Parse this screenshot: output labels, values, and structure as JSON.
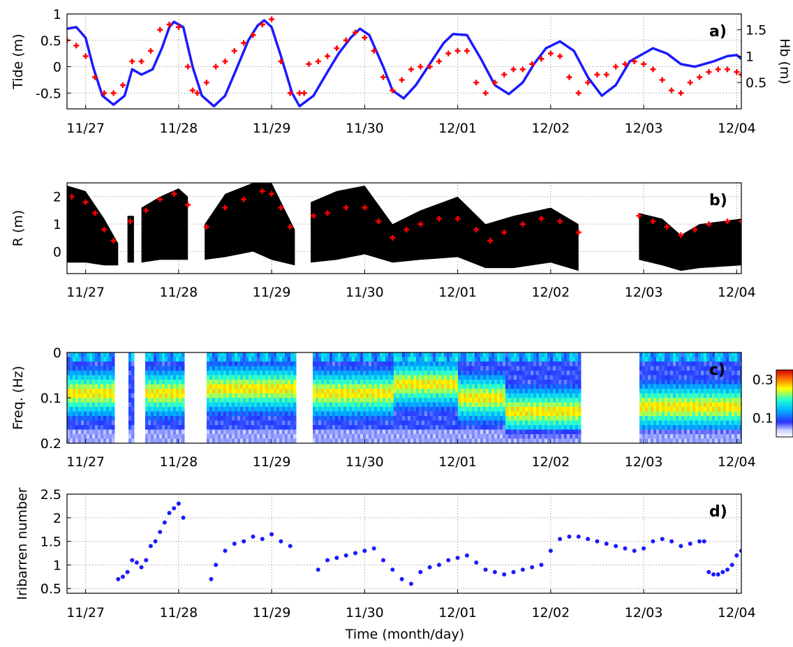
{
  "figure": {
    "xlabel": "Time (month/day)",
    "date_ticks": [
      "11/27",
      "11/28",
      "11/29",
      "11/30",
      "12/01",
      "12/02",
      "12/03",
      "12/04"
    ]
  },
  "chart_data": [
    {
      "type": "line",
      "panel_label": "a)",
      "ylabel": "Tide (m)",
      "ylabel_right": "Hb (m)",
      "xlim": [
        26.8,
        34.05
      ],
      "ylim": [
        -0.8,
        1.0
      ],
      "ylim_right": [
        0,
        1.8
      ],
      "yticks": [
        -0.5,
        0,
        0.5,
        1
      ],
      "yticks_right": [
        0.5,
        1,
        1.5
      ],
      "grid": true,
      "series": [
        {
          "axis": "left",
          "style": "line",
          "color": "#1a1aff",
          "x": [
            26.8,
            26.9,
            27.0,
            27.08,
            27.18,
            27.3,
            27.42,
            27.5,
            27.6,
            27.72,
            27.82,
            27.9,
            27.95,
            28.05,
            28.15,
            28.25,
            28.38,
            28.5,
            28.62,
            28.75,
            28.85,
            28.92,
            29.0,
            29.1,
            29.22,
            29.3,
            29.45,
            29.6,
            29.72,
            29.85,
            29.95,
            30.05,
            30.2,
            30.3,
            30.42,
            30.55,
            30.7,
            30.85,
            30.95,
            31.1,
            31.25,
            31.4,
            31.55,
            31.7,
            31.82,
            31.95,
            32.1,
            32.25,
            32.4,
            32.55,
            32.7,
            32.85,
            32.95,
            33.1,
            33.25,
            33.4,
            33.55,
            33.75,
            33.9,
            34.0,
            34.05
          ],
          "y": [
            0.72,
            0.75,
            0.55,
            0.0,
            -0.55,
            -0.72,
            -0.55,
            -0.05,
            -0.15,
            -0.05,
            0.35,
            0.75,
            0.85,
            0.75,
            0.0,
            -0.55,
            -0.75,
            -0.55,
            -0.05,
            0.5,
            0.78,
            0.88,
            0.75,
            0.2,
            -0.5,
            -0.75,
            -0.55,
            -0.1,
            0.25,
            0.55,
            0.72,
            0.6,
            0.0,
            -0.45,
            -0.6,
            -0.35,
            0.05,
            0.45,
            0.62,
            0.6,
            0.15,
            -0.35,
            -0.52,
            -0.3,
            0.05,
            0.35,
            0.48,
            0.3,
            -0.2,
            -0.55,
            -0.35,
            0.1,
            0.2,
            0.35,
            0.25,
            0.05,
            0.0,
            0.1,
            0.2,
            0.22,
            0.15
          ]
        },
        {
          "axis": "right",
          "style": "markers",
          "color": "#ff0000",
          "x": [
            26.8,
            26.9,
            27.0,
            27.1,
            27.2,
            27.3,
            27.4,
            27.5,
            27.6,
            27.7,
            27.8,
            27.9,
            28.0,
            28.1,
            28.15,
            28.2,
            28.3,
            28.4,
            28.5,
            28.6,
            28.7,
            28.8,
            28.9,
            29.0,
            29.1,
            29.2,
            29.3,
            29.35,
            29.4,
            29.5,
            29.6,
            29.7,
            29.8,
            29.9,
            30.0,
            30.1,
            30.2,
            30.3,
            30.4,
            30.5,
            30.6,
            30.7,
            30.8,
            30.9,
            31.0,
            31.1,
            31.2,
            31.3,
            31.4,
            31.5,
            31.6,
            31.7,
            31.8,
            31.9,
            32.0,
            32.1,
            32.2,
            32.3,
            32.4,
            32.5,
            32.6,
            32.7,
            32.8,
            32.9,
            33.0,
            33.1,
            33.2,
            33.3,
            33.4,
            33.5,
            33.6,
            33.7,
            33.8,
            33.9,
            34.0,
            34.05
          ],
          "y": [
            1.3,
            1.2,
            1.0,
            0.6,
            0.3,
            0.3,
            0.45,
            0.9,
            0.9,
            1.1,
            1.5,
            1.6,
            1.55,
            0.8,
            0.35,
            0.3,
            0.5,
            0.8,
            0.9,
            1.1,
            1.25,
            1.4,
            1.6,
            1.7,
            0.9,
            0.3,
            0.3,
            0.3,
            0.85,
            0.9,
            1.0,
            1.15,
            1.3,
            1.45,
            1.35,
            1.1,
            0.6,
            0.35,
            0.55,
            0.75,
            0.8,
            0.8,
            0.9,
            1.05,
            1.1,
            1.1,
            0.5,
            0.3,
            0.5,
            0.65,
            0.75,
            0.75,
            0.85,
            0.95,
            1.05,
            1.0,
            0.6,
            0.3,
            0.5,
            0.65,
            0.65,
            0.8,
            0.85,
            0.9,
            0.85,
            0.75,
            0.55,
            0.35,
            0.3,
            0.5,
            0.6,
            0.7,
            0.75,
            0.75,
            0.7,
            0.65
          ]
        }
      ]
    },
    {
      "type": "scatter",
      "panel_label": "b)",
      "ylabel": "R (m)",
      "xlim": [
        26.8,
        34.05
      ],
      "ylim": [
        -0.8,
        2.5
      ],
      "yticks": [
        0,
        1,
        2
      ],
      "grid": true,
      "series": [
        {
          "style": "band",
          "color": "#000000",
          "segments": [
            {
              "x": [
                26.8,
                27.0,
                27.2,
                27.35
              ],
              "lower": [
                -0.4,
                -0.4,
                -0.5,
                -0.5
              ],
              "upper": [
                2.4,
                2.2,
                1.2,
                0.3
              ]
            },
            {
              "x": [
                27.45,
                27.52
              ],
              "lower": [
                -0.4,
                -0.4
              ],
              "upper": [
                1.3,
                1.3
              ]
            },
            {
              "x": [
                27.6,
                27.8,
                28.0,
                28.1
              ],
              "lower": [
                -0.4,
                -0.3,
                -0.3,
                -0.3
              ],
              "upper": [
                1.6,
                2.0,
                2.3,
                2.0
              ]
            },
            {
              "x": [
                28.28,
                28.5,
                28.8,
                29.0,
                29.25
              ],
              "lower": [
                -0.3,
                -0.2,
                0.0,
                -0.3,
                -0.5
              ],
              "upper": [
                1.0,
                2.1,
                2.5,
                2.5,
                0.8
              ]
            },
            {
              "x": [
                29.42,
                29.7,
                30.0,
                30.3,
                30.6,
                31.0,
                31.3,
                31.6,
                32.0,
                32.3
              ],
              "lower": [
                -0.4,
                -0.3,
                -0.1,
                -0.4,
                -0.3,
                -0.2,
                -0.6,
                -0.6,
                -0.4,
                -0.7
              ],
              "upper": [
                1.8,
                2.2,
                2.4,
                1.0,
                1.5,
                2.0,
                1.0,
                1.3,
                1.6,
                1.0
              ]
            },
            {
              "x": [
                32.95,
                33.2,
                33.4,
                33.6,
                34.05
              ],
              "lower": [
                -0.3,
                -0.5,
                -0.7,
                -0.6,
                -0.5
              ],
              "upper": [
                1.4,
                1.2,
                0.6,
                1.0,
                1.2
              ]
            }
          ]
        },
        {
          "style": "markers",
          "color": "#ff0000",
          "x": [
            26.85,
            27.0,
            27.1,
            27.2,
            27.3,
            27.48,
            27.65,
            27.8,
            27.95,
            28.1,
            28.3,
            28.5,
            28.7,
            28.9,
            29.0,
            29.1,
            29.2,
            29.45,
            29.6,
            29.8,
            30.0,
            30.15,
            30.3,
            30.45,
            30.6,
            30.8,
            31.0,
            31.2,
            31.35,
            31.5,
            31.7,
            31.9,
            32.1,
            32.3,
            32.95,
            33.1,
            33.25,
            33.4,
            33.55,
            33.7,
            33.9,
            34.05
          ],
          "y": [
            2.0,
            1.8,
            1.4,
            0.8,
            0.4,
            1.1,
            1.5,
            1.9,
            2.1,
            1.7,
            0.9,
            1.6,
            1.9,
            2.2,
            2.1,
            1.6,
            0.9,
            1.3,
            1.4,
            1.6,
            1.6,
            1.1,
            0.5,
            0.8,
            1.0,
            1.2,
            1.2,
            0.8,
            0.4,
            0.7,
            1.0,
            1.2,
            1.1,
            0.7,
            1.3,
            1.1,
            0.9,
            0.6,
            0.8,
            1.0,
            1.1,
            1.1
          ]
        }
      ]
    },
    {
      "type": "heatmap",
      "panel_label": "c)",
      "ylabel": "Freq. (Hz)",
      "xlim": [
        26.8,
        34.05
      ],
      "ylim": [
        0.2,
        0
      ],
      "yticks": [
        0,
        0.1,
        0.2
      ],
      "grid": false,
      "colorbar": {
        "ticks": [
          0.1,
          0.3
        ],
        "range": [
          0,
          0.35
        ]
      },
      "gaps": [
        [
          27.3,
          27.45
        ],
        [
          27.52,
          27.62
        ],
        [
          28.05,
          28.28
        ],
        [
          29.25,
          29.42
        ],
        [
          32.3,
          32.95
        ]
      ],
      "peak_band": [
        {
          "x": [
            26.8,
            27.3
          ],
          "f": 0.09
        },
        {
          "x": [
            27.6,
            28.1
          ],
          "f": 0.09
        },
        {
          "x": [
            28.3,
            29.25
          ],
          "f": 0.08
        },
        {
          "x": [
            29.42,
            30.3
          ],
          "f": 0.09
        },
        {
          "x": [
            30.3,
            31.0
          ],
          "f": 0.07
        },
        {
          "x": [
            31.0,
            31.5
          ],
          "f": 0.1
        },
        {
          "x": [
            31.5,
            32.3
          ],
          "f": 0.13
        },
        {
          "x": [
            32.95,
            34.05
          ],
          "f": 0.12
        }
      ]
    },
    {
      "type": "scatter",
      "panel_label": "d)",
      "ylabel": "Iribarren number",
      "xlim": [
        26.8,
        34.05
      ],
      "ylim": [
        0.4,
        2.5
      ],
      "yticks": [
        0.5,
        1,
        1.5,
        2,
        2.5
      ],
      "grid": true,
      "series": [
        {
          "style": "markers",
          "color": "#1a1aff",
          "x": [
            27.35,
            27.4,
            27.45,
            27.5,
            27.55,
            27.6,
            27.65,
            27.7,
            27.75,
            27.8,
            27.85,
            27.9,
            27.95,
            28.0,
            28.05,
            28.35,
            28.4,
            28.5,
            28.6,
            28.7,
            28.8,
            28.9,
            29.0,
            29.1,
            29.2,
            29.5,
            29.6,
            29.7,
            29.8,
            29.9,
            30.0,
            30.1,
            30.2,
            30.3,
            30.4,
            30.5,
            30.6,
            30.7,
            30.8,
            30.9,
            31.0,
            31.1,
            31.2,
            31.3,
            31.4,
            31.5,
            31.6,
            31.7,
            31.8,
            31.9,
            32.0,
            32.1,
            32.2,
            32.3,
            32.4,
            32.5,
            32.6,
            32.7,
            32.8,
            32.9,
            33.0,
            33.1,
            33.2,
            33.3,
            33.4,
            33.5,
            33.6,
            33.65,
            33.7,
            33.75,
            33.8,
            33.85,
            33.9,
            33.95,
            34.0,
            34.05,
            34.1
          ],
          "y": [
            0.7,
            0.75,
            0.85,
            1.1,
            1.05,
            0.95,
            1.1,
            1.4,
            1.5,
            1.7,
            1.9,
            2.1,
            2.2,
            2.3,
            2.0,
            0.7,
            1.0,
            1.3,
            1.45,
            1.5,
            1.6,
            1.55,
            1.65,
            1.5,
            1.4,
            0.9,
            1.1,
            1.15,
            1.2,
            1.25,
            1.3,
            1.35,
            1.1,
            0.9,
            0.7,
            0.6,
            0.85,
            0.95,
            1.0,
            1.1,
            1.15,
            1.2,
            1.05,
            0.9,
            0.85,
            0.8,
            0.85,
            0.9,
            0.95,
            1.0,
            1.3,
            1.55,
            1.6,
            1.6,
            1.55,
            1.5,
            1.45,
            1.4,
            1.35,
            1.3,
            1.35,
            1.5,
            1.55,
            1.5,
            1.4,
            1.45,
            1.5,
            1.5,
            0.85,
            0.8,
            0.8,
            0.85,
            0.9,
            1.0,
            1.2,
            1.3,
            1.35
          ]
        }
      ]
    }
  ]
}
